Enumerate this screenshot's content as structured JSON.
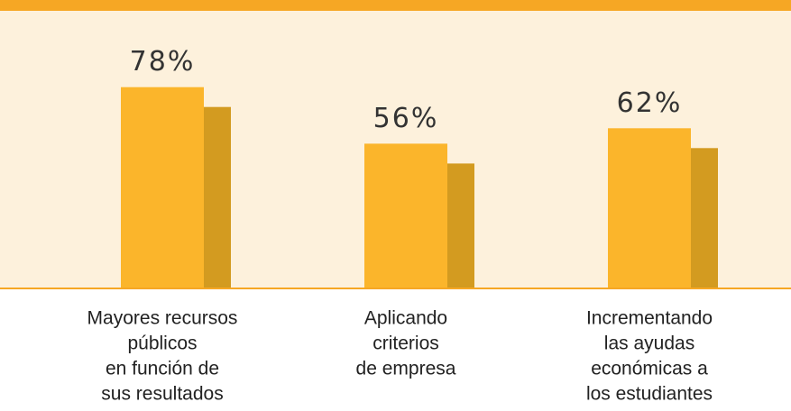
{
  "chart_data": {
    "type": "bar",
    "categories": [
      [
        "Mayores recursos",
        "públicos",
        "en función de",
        "sus resultados"
      ],
      [
        "Aplicando",
        "criterios",
        "de empresa"
      ],
      [
        "Incrementando",
        "las ayudas",
        "económicas a",
        "los estudiantes"
      ]
    ],
    "values": [
      78,
      56,
      62
    ],
    "value_labels": [
      "78%",
      "56%",
      "62%"
    ],
    "color": "#fbb52b",
    "shade_color": "#d39b20"
  }
}
